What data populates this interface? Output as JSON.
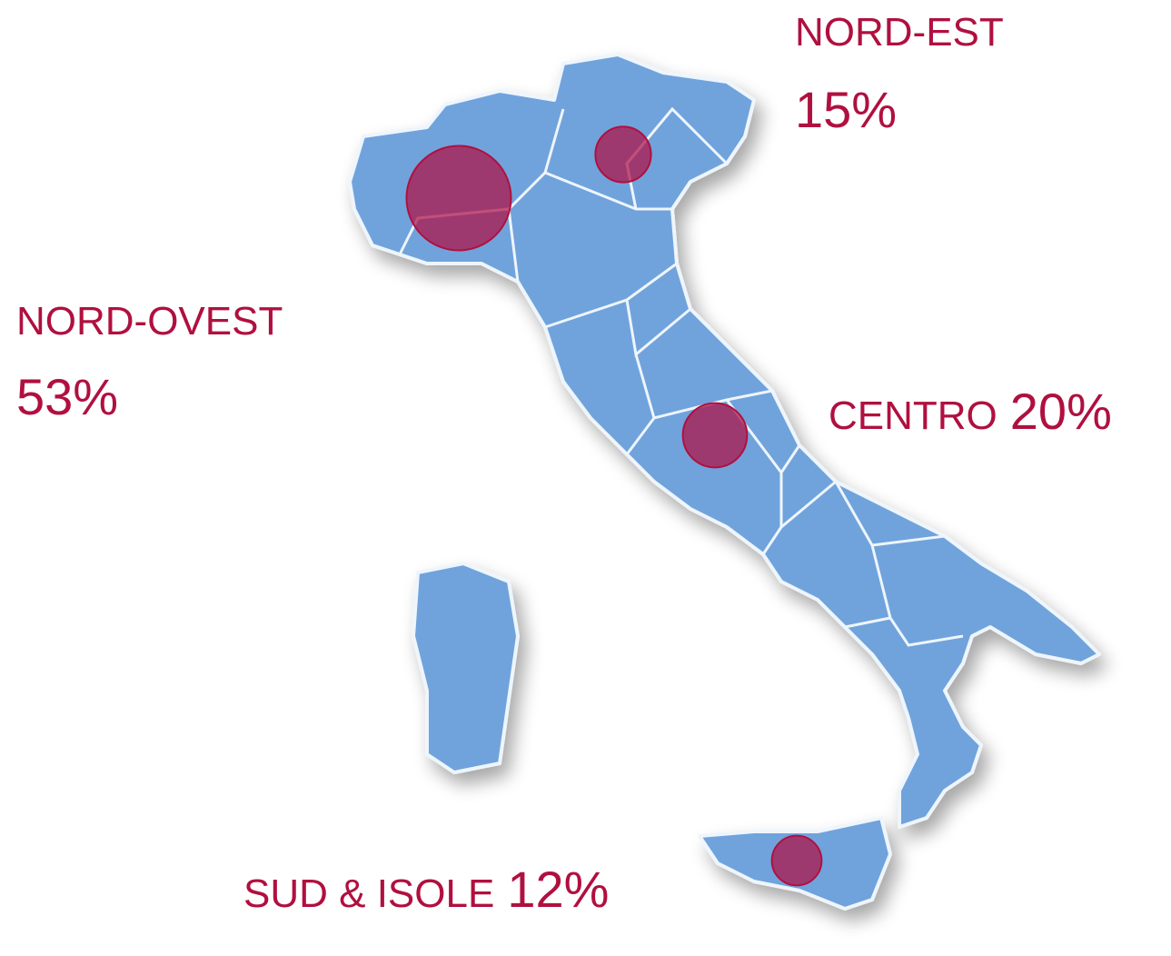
{
  "regions": [
    {
      "name": "NORD-EST",
      "value": 15,
      "label": "15%"
    },
    {
      "name": "NORD-OVEST",
      "value": 53,
      "label": "53%"
    },
    {
      "name": "CENTRO",
      "value": 20,
      "label": "20%"
    },
    {
      "name": "SUD & ISOLE",
      "value": 12,
      "label": "12%"
    }
  ]
}
